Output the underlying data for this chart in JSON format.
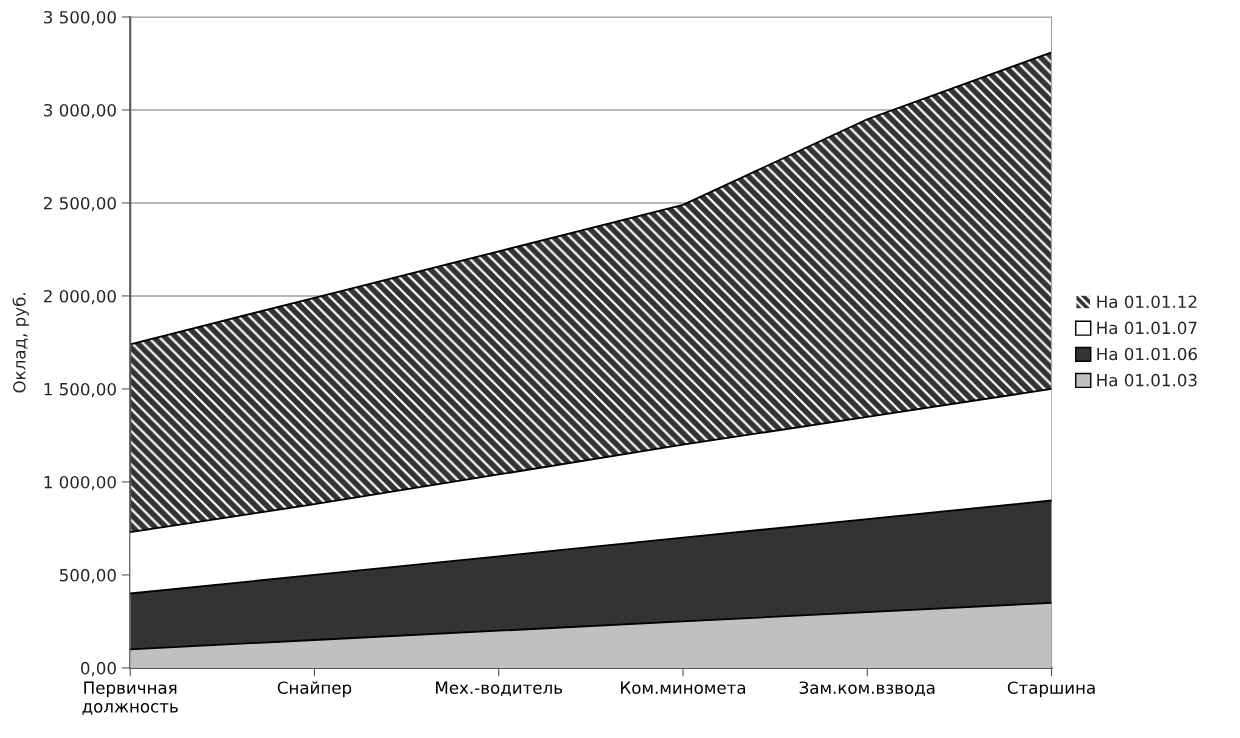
{
  "chart_data": {
    "type": "area",
    "ylabel": "Оклад, руб.",
    "categories": [
      "Первичная\nдолжность",
      "Снайпер",
      "Мех.-водитель",
      "Ком.миномета",
      "Зам.ком.взвода",
      "Старшина"
    ],
    "series": [
      {
        "name": "На 01.01.12",
        "color": "#333333",
        "values": [
          1740,
          1990,
          2240,
          2490,
          2950,
          3310
        ]
      },
      {
        "name": "На 01.01.07",
        "color": "#ffffff",
        "values": [
          730,
          880,
          1040,
          1200,
          1350,
          1500
        ]
      },
      {
        "name": "На 01.01.06",
        "color": "#333333",
        "values": [
          400,
          500,
          600,
          700,
          800,
          900
        ]
      },
      {
        "name": "На 01.01.03",
        "color": "#c0c0c0",
        "values": [
          100,
          150,
          200,
          250,
          300,
          350
        ]
      }
    ],
    "ylim": [
      0,
      3500
    ],
    "yticks": [
      {
        "value": 0,
        "label": "0,00"
      },
      {
        "value": 500,
        "label": "500,00"
      },
      {
        "value": 1000,
        "label": "1 000,00"
      },
      {
        "value": 1500,
        "label": "1 500,00"
      },
      {
        "value": 2000,
        "label": "2 000,00"
      },
      {
        "value": 2500,
        "label": "2 500,00"
      },
      {
        "value": 3000,
        "label": "3 000,00"
      },
      {
        "value": 3500,
        "label": "3 500,00"
      }
    ],
    "grid": "y",
    "legend": "right"
  }
}
